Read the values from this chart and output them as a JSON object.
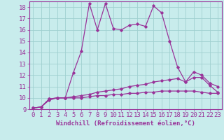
{
  "xlabel": "Windchill (Refroidissement éolien,°C)",
  "bg_color": "#c8ecec",
  "line_color": "#993399",
  "grid_color": "#a0d0d0",
  "xlim": [
    -0.5,
    23.5
  ],
  "ylim": [
    9,
    18.5
  ],
  "yticks": [
    9,
    10,
    11,
    12,
    13,
    14,
    15,
    16,
    17,
    18
  ],
  "xticks": [
    0,
    1,
    2,
    3,
    4,
    5,
    6,
    7,
    8,
    9,
    10,
    11,
    12,
    13,
    14,
    15,
    16,
    17,
    18,
    19,
    20,
    21,
    22,
    23
  ],
  "line1_x": [
    0,
    1,
    2,
    3,
    4,
    5,
    6,
    7,
    8,
    9,
    10,
    11,
    12,
    13,
    14,
    15,
    16,
    17,
    18,
    19,
    20,
    21,
    22,
    23
  ],
  "line1_y": [
    9.1,
    9.2,
    9.9,
    10.0,
    10.0,
    12.2,
    14.1,
    18.3,
    16.0,
    18.3,
    16.1,
    16.0,
    16.4,
    16.5,
    16.3,
    18.1,
    17.5,
    15.0,
    12.7,
    11.4,
    12.3,
    12.0,
    11.3,
    11.0
  ],
  "line2_x": [
    0,
    1,
    2,
    3,
    4,
    5,
    6,
    7,
    8,
    9,
    10,
    11,
    12,
    13,
    14,
    15,
    16,
    17,
    18,
    19,
    20,
    21,
    22,
    23
  ],
  "line2_y": [
    9.1,
    9.2,
    9.9,
    10.0,
    10.0,
    10.1,
    10.2,
    10.3,
    10.5,
    10.6,
    10.7,
    10.8,
    11.0,
    11.1,
    11.2,
    11.4,
    11.5,
    11.6,
    11.7,
    11.4,
    11.8,
    11.8,
    11.1,
    10.5
  ],
  "line3_x": [
    0,
    1,
    2,
    3,
    4,
    5,
    6,
    7,
    8,
    9,
    10,
    11,
    12,
    13,
    14,
    15,
    16,
    17,
    18,
    19,
    20,
    21,
    22,
    23
  ],
  "line3_y": [
    9.1,
    9.2,
    9.8,
    10.0,
    10.0,
    10.0,
    10.0,
    10.1,
    10.2,
    10.2,
    10.3,
    10.3,
    10.4,
    10.4,
    10.5,
    10.5,
    10.6,
    10.6,
    10.6,
    10.6,
    10.6,
    10.5,
    10.4,
    10.4
  ],
  "tick_fontsize": 6.5,
  "xlabel_fontsize": 6.5
}
